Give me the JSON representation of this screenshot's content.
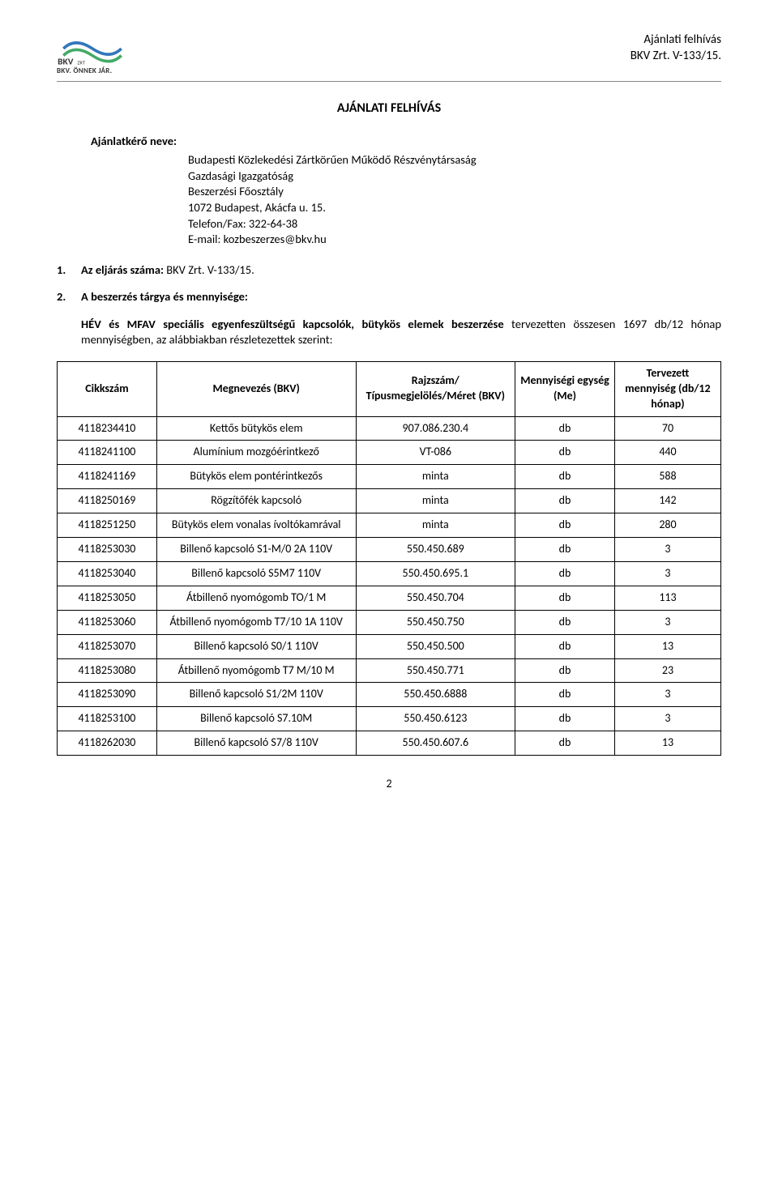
{
  "header": {
    "logo_caption": "BKV. ÖNNEK JÁR.",
    "right_line1": "Ajánlati felhívás",
    "right_line2": "BKV Zrt. V-133/15."
  },
  "doc_title": "AJÁNLATI FELHÍVÁS",
  "requester": {
    "label": "Ajánlatkérő neve:",
    "lines": [
      "Budapesti Közlekedési Zártkörűen Működő Részvénytársaság",
      "Gazdasági Igazgatóság",
      "Beszerzési Főosztály",
      "1072 Budapest, Akácfa u. 15.",
      "Telefon/Fax: 322-64-38",
      "E-mail: kozbeszerzes@bkv.hu"
    ]
  },
  "item1": {
    "num": "1.",
    "label": "Az eljárás száma:",
    "value": " BKV Zrt. V-133/15."
  },
  "item2": {
    "num": "2.",
    "label": "A beszerzés tárgya és mennyisége:"
  },
  "subject": {
    "bold_part": "HÉV és MFAV speciális egyenfeszültségű kapcsolók, bütykös elemek beszerzése",
    "rest": " tervezetten összesen 1697 db/12 hónap mennyiségben, az alábbiakban részletezettek szerint:"
  },
  "table": {
    "headers": {
      "c1": "Cikkszám",
      "c2": "Megnevezés (BKV)",
      "c3": "Rajzszám/ Típusmegjelölés/Méret (BKV)",
      "c4": "Mennyiségi egység (Me)",
      "c5": "Tervezett mennyiség (db/12 hónap)"
    },
    "rows": [
      {
        "c1": "4118234410",
        "c2": "Kettős bütykös elem",
        "c3": "907.086.230.4",
        "c4": "db",
        "c5": "70"
      },
      {
        "c1": "4118241100",
        "c2": "Alumínium mozgóérintkező",
        "c3": "VT-086",
        "c4": "db",
        "c5": "440"
      },
      {
        "c1": "4118241169",
        "c2": "Bütykös elem pontérintkezős",
        "c3": "minta",
        "c4": "db",
        "c5": "588"
      },
      {
        "c1": "4118250169",
        "c2": "Rögzítőfék kapcsoló",
        "c3": "minta",
        "c4": "db",
        "c5": "142"
      },
      {
        "c1": "4118251250",
        "c2": "Bütykös elem vonalas ívoltókamrával",
        "c3": "minta",
        "c4": "db",
        "c5": "280"
      },
      {
        "c1": "4118253030",
        "c2": "Billenő kapcsoló S1-M/0 2A 110V",
        "c3": "550.450.689",
        "c4": "db",
        "c5": "3"
      },
      {
        "c1": "4118253040",
        "c2": "Billenő kapcsoló S5M7 110V",
        "c3": "550.450.695.1",
        "c4": "db",
        "c5": "3"
      },
      {
        "c1": "4118253050",
        "c2": "Átbillenő nyomógomb TO/1 M",
        "c3": "550.450.704",
        "c4": "db",
        "c5": "113"
      },
      {
        "c1": "4118253060",
        "c2": "Átbillenő nyomógomb T7/10 1A 110V",
        "c3": "550.450.750",
        "c4": "db",
        "c5": "3"
      },
      {
        "c1": "4118253070",
        "c2": "Billenő kapcsoló S0/1 110V",
        "c3": "550.450.500",
        "c4": "db",
        "c5": "13"
      },
      {
        "c1": "4118253080",
        "c2": "Átbillenő nyomógomb T7 M/10 M",
        "c3": "550.450.771",
        "c4": "db",
        "c5": "23"
      },
      {
        "c1": "4118253090",
        "c2": "Billenő kapcsoló S1/2M 110V",
        "c3": "550.450.6888",
        "c4": "db",
        "c5": "3"
      },
      {
        "c1": "4118253100",
        "c2": "Billenő kapcsoló S7.10M",
        "c3": "550.450.6123",
        "c4": "db",
        "c5": "3"
      },
      {
        "c1": "4118262030",
        "c2": "Billenő kapcsoló S7/8 110V",
        "c3": "550.450.607.6",
        "c4": "db",
        "c5": "13"
      }
    ]
  },
  "page_number": "2"
}
